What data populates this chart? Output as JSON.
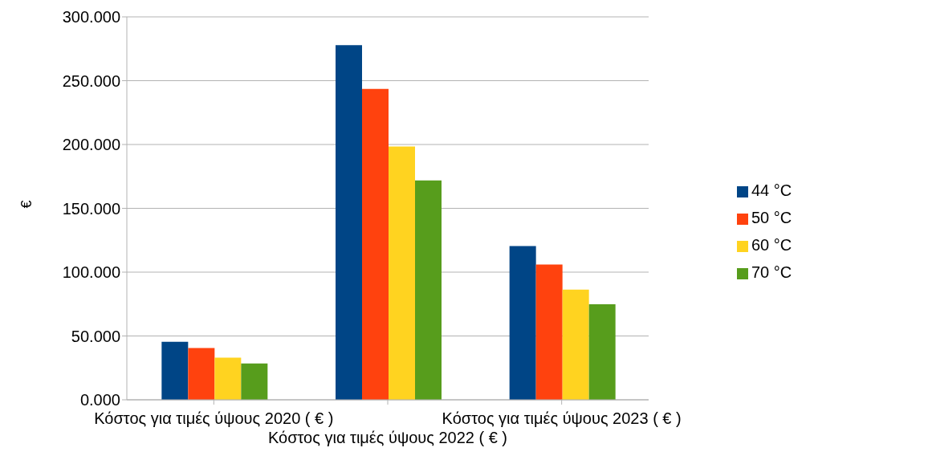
{
  "chart_data": {
    "type": "bar",
    "ylabel": "€",
    "categories": [
      "Κόστος για τιμές ύψους 2020 ( € )",
      "Κόστος για τιμές ύψους 2022 ( € )",
      "Κόστος για τιμές ύψους 2023 ( € )"
    ],
    "series": [
      {
        "name": "44 °C",
        "color": "#004586",
        "values": [
          45.5,
          277.8,
          120.5
        ]
      },
      {
        "name": "50 °C",
        "color": "#ff420e",
        "values": [
          40.6,
          243.5,
          105.9
        ]
      },
      {
        "name": "60 °C",
        "color": "#ffd320",
        "values": [
          33.0,
          198.5,
          86.3
        ]
      },
      {
        "name": "70 °C",
        "color": "#579d1c",
        "values": [
          28.5,
          171.9,
          74.8
        ]
      }
    ],
    "ylim": [
      0,
      300
    ],
    "yticks": [
      {
        "value": 0,
        "label": "0.000"
      },
      {
        "value": 50,
        "label": "50.000"
      },
      {
        "value": 100,
        "label": "100.000"
      },
      {
        "value": 150,
        "label": "150.000"
      },
      {
        "value": 200,
        "label": "200.000"
      },
      {
        "value": 250,
        "label": "250.000"
      },
      {
        "value": 300,
        "label": "300.000"
      }
    ],
    "grid": "y",
    "legend": "right"
  }
}
